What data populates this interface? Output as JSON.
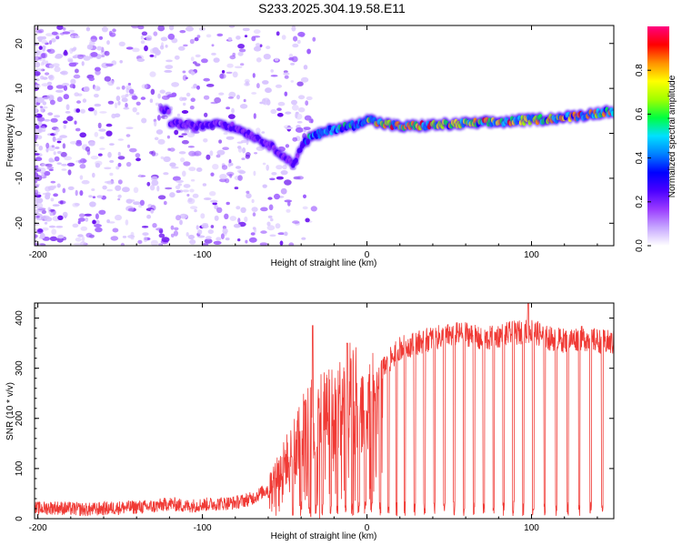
{
  "figure": {
    "title": "S233.2025.304.19.58.E11"
  },
  "chart_data": [
    {
      "type": "heatmap",
      "name": "spectrogram",
      "xlabel": "Height of straight line (km)",
      "ylabel": "Frequency (Hz)",
      "xlim": [
        -202,
        150
      ],
      "ylim": [
        -25,
        24
      ],
      "x_ticks": [
        -200,
        -100,
        0,
        100
      ],
      "y_ticks": [
        -20,
        -10,
        0,
        10,
        20
      ],
      "ridge": {
        "description_points_x": [
          -120,
          -105,
          -90,
          -75,
          -62,
          -52,
          -45,
          -40,
          -35,
          -20,
          -5,
          0,
          5,
          20,
          50,
          80,
          100,
          120,
          140,
          150
        ],
        "frequency_hz": [
          2.5,
          1.5,
          2.5,
          0.5,
          -2.0,
          -4.5,
          -7.0,
          -3.0,
          -1.0,
          1.0,
          2.0,
          3.5,
          2.5,
          1.5,
          2.0,
          2.5,
          3.0,
          3.5,
          4.5,
          5.0
        ]
      },
      "colorbar": {
        "label": "Normalized spectral amplitude",
        "range": [
          0.0,
          1.0
        ],
        "ticks": [
          "0.0",
          "0.2",
          "0.4",
          "0.6",
          "0.8"
        ],
        "colors": [
          "#ffffff",
          "#c6a6ff",
          "#9a3bff",
          "#4b00ff",
          "#0000ff",
          "#0080ff",
          "#00e0ff",
          "#00ff40",
          "#a0ff00",
          "#ffff00",
          "#ff9000",
          "#ff0000",
          "#ff0080"
        ]
      }
    },
    {
      "type": "line",
      "name": "snr",
      "xlabel": "Height of straight line (km)",
      "ylabel": "SNR (10 * v/v)",
      "xlim": [
        -202,
        150
      ],
      "ylim": [
        0,
        430
      ],
      "x_ticks": [
        -200,
        -100,
        0,
        100
      ],
      "y_ticks": [
        0,
        100,
        200,
        300,
        400
      ],
      "color": "#f03a35",
      "series": [
        {
          "name": "SNR",
          "x": [
            -202,
            -190,
            -170,
            -150,
            -130,
            -120,
            -110,
            -100,
            -90,
            -80,
            -70,
            -60,
            -55,
            -50,
            -45,
            -40,
            -35,
            -30,
            -25,
            -20,
            -15,
            -10,
            -5,
            0,
            5,
            10,
            15,
            20,
            25,
            30,
            40,
            50,
            60,
            70,
            80,
            90,
            100,
            110,
            120,
            130,
            140,
            150
          ],
          "values": [
            20,
            22,
            18,
            22,
            24,
            30,
            25,
            28,
            30,
            32,
            40,
            60,
            90,
            110,
            140,
            170,
            190,
            200,
            220,
            210,
            230,
            250,
            240,
            210,
            260,
            300,
            320,
            340,
            345,
            350,
            360,
            365,
            370,
            355,
            365,
            370,
            375,
            360,
            355,
            360,
            355,
            350
          ]
        }
      ],
      "dropouts_x": [
        -45,
        -40,
        -35,
        -31,
        -27,
        -22,
        -18,
        -13,
        -9,
        -5,
        -1,
        3,
        8,
        13,
        18,
        23,
        29,
        35,
        41,
        47,
        53,
        59,
        65,
        71,
        77,
        83,
        89,
        95,
        101,
        108,
        115,
        122,
        129,
        136,
        143
      ],
      "spikes": [
        {
          "x": -33,
          "value": 385
        },
        {
          "x": -12,
          "value": 350
        },
        {
          "x": 98,
          "value": 430
        }
      ]
    }
  ]
}
